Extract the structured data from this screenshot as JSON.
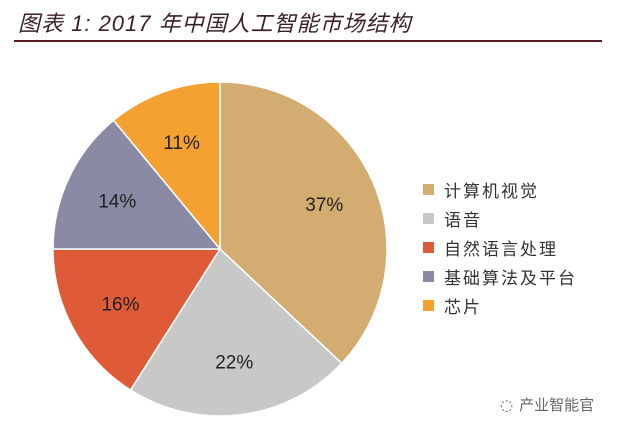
{
  "chart_data": {
    "type": "pie",
    "title": "图表 1: 2017 年中国人工智能市场结构",
    "start": "12 o'clock, clockwise",
    "legend_position": "right",
    "slices": [
      {
        "name": "计算机视觉",
        "value": 37,
        "label": "37%",
        "color": "#D3AC72"
      },
      {
        "name": "语音",
        "value": 22,
        "label": "22%",
        "color": "#C8C8C8"
      },
      {
        "name": "自然语言处理",
        "value": 16,
        "label": "16%",
        "color": "#DF5A37"
      },
      {
        "name": "基础算法及平台",
        "value": 14,
        "label": "14%",
        "color": "#8B8AA5"
      },
      {
        "name": "芯片",
        "value": 11,
        "label": "11%",
        "color": "#F4A132"
      }
    ]
  },
  "watermark": {
    "text": "产业智能官",
    "icon": "wechat-icon"
  }
}
